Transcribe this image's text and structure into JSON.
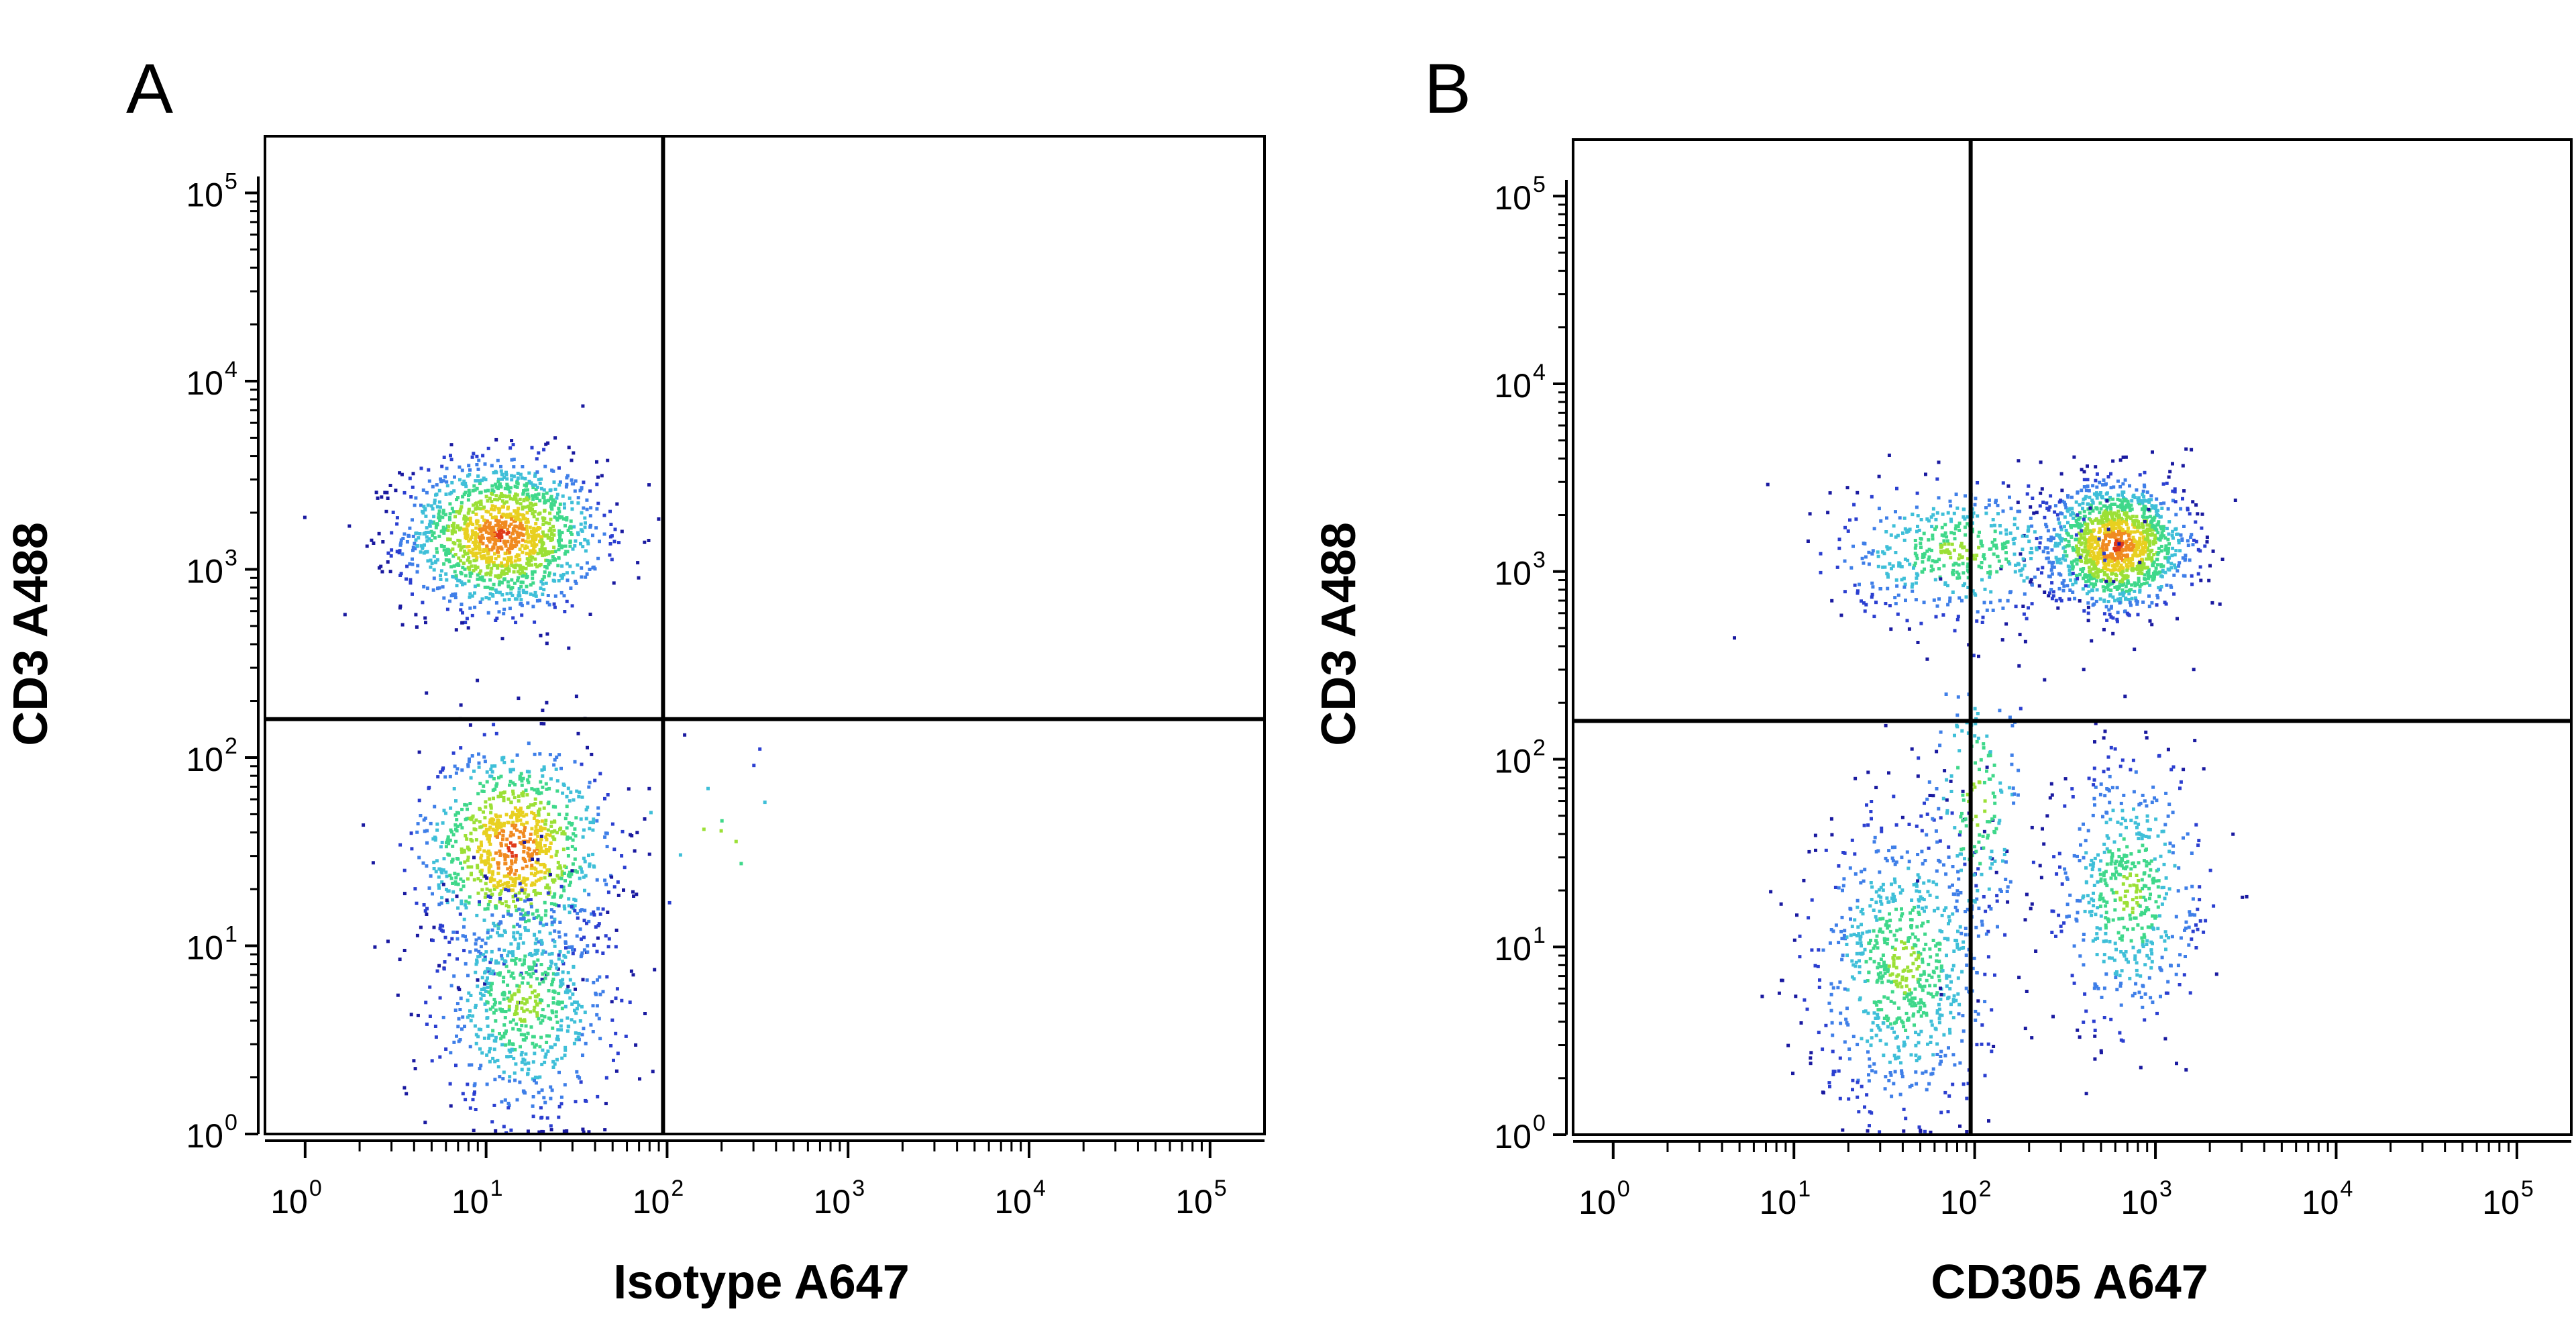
{
  "figure": {
    "background": "#ffffff",
    "axis_color": "#000000",
    "density_colors": [
      "#1a1aa0",
      "#2b3fd0",
      "#3f7fe8",
      "#3fbfd8",
      "#3fd88a",
      "#9be036",
      "#e8d020",
      "#f08a20",
      "#e03a1a"
    ]
  },
  "chart_data": [
    {
      "type": "scatter",
      "panel_label": "A",
      "xlabel": "Isotype A647",
      "ylabel": "CD3 A488",
      "xscale": "log",
      "yscale": "log",
      "xlim": [
        0.6,
        200000
      ],
      "ylim": [
        1,
        200000
      ],
      "xticks": [
        {
          "base": "10",
          "exp": "0",
          "value": 1
        },
        {
          "base": "10",
          "exp": "1",
          "value": 10
        },
        {
          "base": "10",
          "exp": "2",
          "value": 100
        },
        {
          "base": "10",
          "exp": "3",
          "value": 1000
        },
        {
          "base": "10",
          "exp": "4",
          "value": 10000
        },
        {
          "base": "10",
          "exp": "5",
          "value": 100000
        }
      ],
      "yticks": [
        {
          "base": "10",
          "exp": "0",
          "value": 1
        },
        {
          "base": "10",
          "exp": "1",
          "value": 10
        },
        {
          "base": "10",
          "exp": "2",
          "value": 100
        },
        {
          "base": "10",
          "exp": "3",
          "value": 1000
        },
        {
          "base": "10",
          "exp": "4",
          "value": 10000
        },
        {
          "base": "10",
          "exp": "5",
          "value": 100000
        }
      ],
      "quadrant_gate": {
        "x": 95,
        "y": 160
      },
      "populations": [
        {
          "center": [
            12,
            1550
          ],
          "spread": [
            0.27,
            0.2
          ],
          "count": 1400
        },
        {
          "center": [
            14,
            33
          ],
          "spread": [
            0.26,
            0.28
          ],
          "count": 1000
        },
        {
          "center": [
            16,
            5
          ],
          "spread": [
            0.25,
            0.3
          ],
          "count": 700
        },
        {
          "center": [
            200,
            40
          ],
          "spread": [
            0.35,
            0.2
          ],
          "count": 12
        }
      ]
    },
    {
      "type": "scatter",
      "panel_label": "B",
      "xlabel": "CD305 A647",
      "ylabel": "CD3 A488",
      "xscale": "log",
      "yscale": "log",
      "xlim": [
        0.6,
        200000
      ],
      "ylim": [
        1,
        200000
      ],
      "xticks": [
        {
          "base": "10",
          "exp": "0",
          "value": 1
        },
        {
          "base": "10",
          "exp": "1",
          "value": 10
        },
        {
          "base": "10",
          "exp": "2",
          "value": 100
        },
        {
          "base": "10",
          "exp": "3",
          "value": 1000
        },
        {
          "base": "10",
          "exp": "4",
          "value": 10000
        },
        {
          "base": "10",
          "exp": "5",
          "value": 100000
        }
      ],
      "yticks": [
        {
          "base": "10",
          "exp": "0",
          "value": 1
        },
        {
          "base": "10",
          "exp": "1",
          "value": 10
        },
        {
          "base": "10",
          "exp": "2",
          "value": 100
        },
        {
          "base": "10",
          "exp": "3",
          "value": 1000
        },
        {
          "base": "10",
          "exp": "4",
          "value": 10000
        },
        {
          "base": "10",
          "exp": "5",
          "value": 100000
        }
      ],
      "quadrant_gate": {
        "x": 95,
        "y": 160
      },
      "populations": [
        {
          "center": [
            600,
            1400
          ],
          "spread": [
            0.2,
            0.17
          ],
          "count": 1300
        },
        {
          "center": [
            80,
            1300
          ],
          "spread": [
            0.35,
            0.18
          ],
          "count": 500
        },
        {
          "center": [
            40,
            8
          ],
          "spread": [
            0.25,
            0.4
          ],
          "count": 800
        },
        {
          "center": [
            700,
            20
          ],
          "spread": [
            0.2,
            0.35
          ],
          "count": 550
        },
        {
          "center": [
            100,
            60
          ],
          "spread": [
            0.15,
            0.4
          ],
          "count": 180
        }
      ]
    }
  ]
}
